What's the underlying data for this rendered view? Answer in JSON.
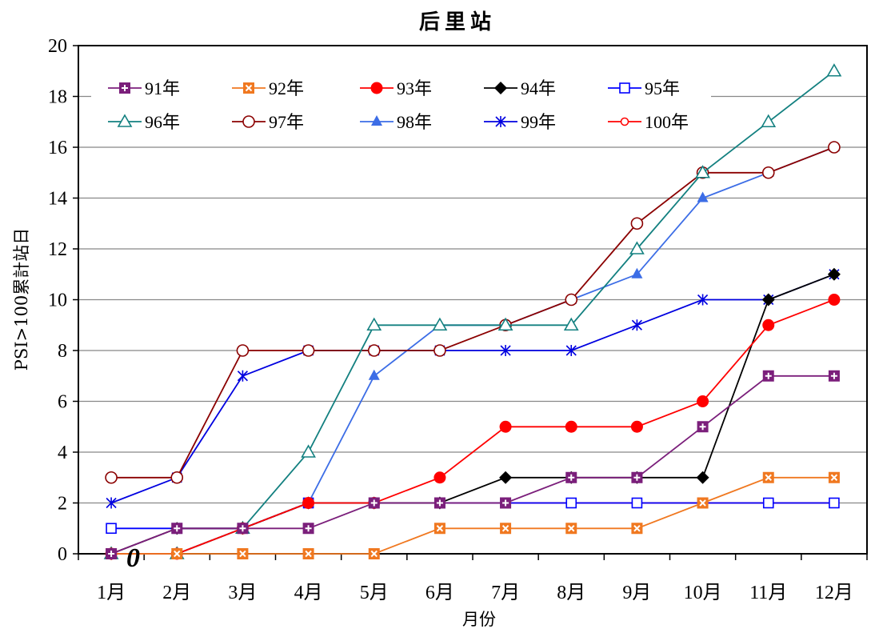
{
  "chart_data": {
    "type": "line",
    "title": "后里站",
    "xlabel": "月份",
    "ylabel": "PSI>100累計站日",
    "categories": [
      "1月",
      "2月",
      "3月",
      "4月",
      "5月",
      "6月",
      "7月",
      "8月",
      "9月",
      "10月",
      "11月",
      "12月"
    ],
    "ylim": [
      0,
      20
    ],
    "yticks": [
      0,
      2,
      4,
      6,
      8,
      10,
      12,
      14,
      16,
      18,
      20
    ],
    "grid": true,
    "legend_position": "top-left",
    "annotation": "0",
    "series": [
      {
        "name": "91年",
        "color": "#7b1f7b",
        "marker": "square-plus",
        "values": [
          0,
          1,
          1,
          1,
          2,
          2,
          2,
          3,
          3,
          5,
          7,
          7
        ]
      },
      {
        "name": "92年",
        "color": "#f07820",
        "marker": "square-x",
        "values": [
          0,
          0,
          0,
          0,
          0,
          1,
          1,
          1,
          1,
          2,
          3,
          3
        ]
      },
      {
        "name": "93年",
        "color": "#ff0000",
        "marker": "circle-filled",
        "values": [
          0,
          0,
          1,
          2,
          2,
          3,
          5,
          5,
          5,
          6,
          9,
          10
        ]
      },
      {
        "name": "94年",
        "color": "#000000",
        "marker": "diamond-filled",
        "values": [
          0,
          1,
          1,
          2,
          2,
          2,
          3,
          3,
          3,
          3,
          10,
          11
        ]
      },
      {
        "name": "95年",
        "color": "#0000ff",
        "marker": "square-open",
        "values": [
          1,
          1,
          1,
          2,
          2,
          2,
          2,
          2,
          2,
          2,
          2,
          2
        ]
      },
      {
        "name": "96年",
        "color": "#138080",
        "marker": "triangle-open",
        "values": [
          0,
          0,
          1,
          4,
          9,
          9,
          9,
          9,
          12,
          15,
          17,
          19
        ]
      },
      {
        "name": "97年",
        "color": "#8b0000",
        "marker": "circle-open",
        "values": [
          3,
          3,
          8,
          8,
          8,
          8,
          9,
          10,
          13,
          15,
          15,
          16
        ]
      },
      {
        "name": "98年",
        "color": "#3c6de6",
        "marker": "triangle-filled",
        "values": [
          0,
          0,
          1,
          2,
          7,
          9,
          9,
          10,
          11,
          14,
          15,
          16
        ]
      },
      {
        "name": "99年",
        "color": "#0000e0",
        "marker": "asterisk",
        "values": [
          2,
          3,
          7,
          8,
          8,
          8,
          8,
          8,
          9,
          10,
          10,
          11
        ]
      },
      {
        "name": "100年",
        "color": "#ff0000",
        "marker": "circle-small-open",
        "values": [
          0,
          0,
          1,
          2,
          2,
          2,
          2,
          2,
          2,
          2,
          2,
          2
        ]
      }
    ]
  }
}
